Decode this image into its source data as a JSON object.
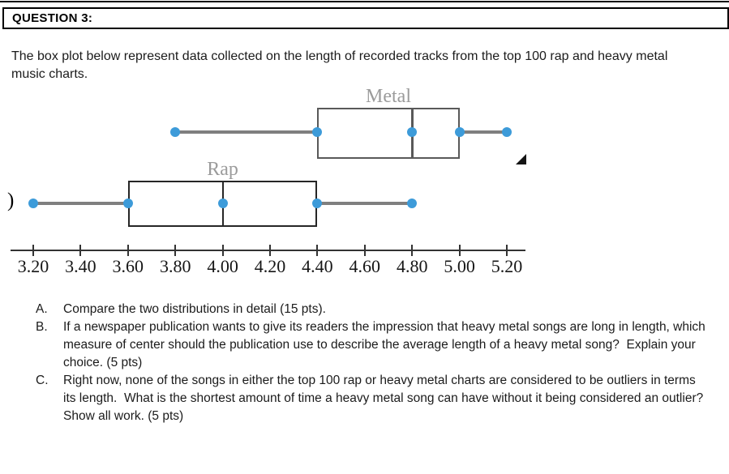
{
  "header": {
    "title": "QUESTION 3:"
  },
  "intro": {
    "text": "The box plot below represent data collected on the length of recorded tracks from the top 100 rap and heavy metal music charts."
  },
  "questions": [
    {
      "label": "A.",
      "text": "Compare the two distributions in detail (15 pts)."
    },
    {
      "label": "B.",
      "text": "If a newspaper publication wants to give its readers the impression that heavy metal songs are long in length, which measure of center should the publication use to describe the average length of a heavy metal song?  Explain your choice. (5 pts)"
    },
    {
      "label": "C.",
      "text": "Right now, none of the songs in either the top 100 rap or heavy metal charts are considered to be outliers in terms its length.  What is the shortest amount of time a heavy metal song can have without it being considered an outlier?  Show all work. (5 pts)"
    }
  ],
  "chart_data": {
    "type": "boxplot",
    "orientation": "horizontal",
    "series": [
      {
        "name": "Metal",
        "min": 3.8,
        "q1": 4.4,
        "median": 4.8,
        "q3": 5.0,
        "max": 5.2,
        "box_color": "#595959"
      },
      {
        "name": "Rap",
        "min": 3.2,
        "q1": 3.6,
        "median": 4.0,
        "q3": 4.4,
        "max": 4.8,
        "box_color": "#262626"
      }
    ],
    "axis": {
      "min": 3.2,
      "max": 5.2,
      "tick_step": 0.2,
      "ticks": [
        {
          "value": 3.2,
          "label": "3.20"
        },
        {
          "value": 3.4,
          "label": "3.40"
        },
        {
          "value": 3.6,
          "label": "3.60"
        },
        {
          "value": 3.8,
          "label": "3.80"
        },
        {
          "value": 4.0,
          "label": "4.00"
        },
        {
          "value": 4.2,
          "label": "4.20"
        },
        {
          "value": 4.4,
          "label": "4.40"
        },
        {
          "value": 4.6,
          "label": "4.60"
        },
        {
          "value": 4.8,
          "label": "4.80"
        },
        {
          "value": 5.0,
          "label": "5.00"
        },
        {
          "value": 5.2,
          "label": "5.20"
        }
      ]
    },
    "colors": {
      "dot": "#3d9bd9",
      "whisker": "#7f7f7f",
      "axis": "#333333",
      "series_label": "#9b9b9b",
      "tick_text": "#161616"
    },
    "legend": "labels above each box",
    "grid": false
  },
  "decorations": {
    "left_mark": ")"
  }
}
